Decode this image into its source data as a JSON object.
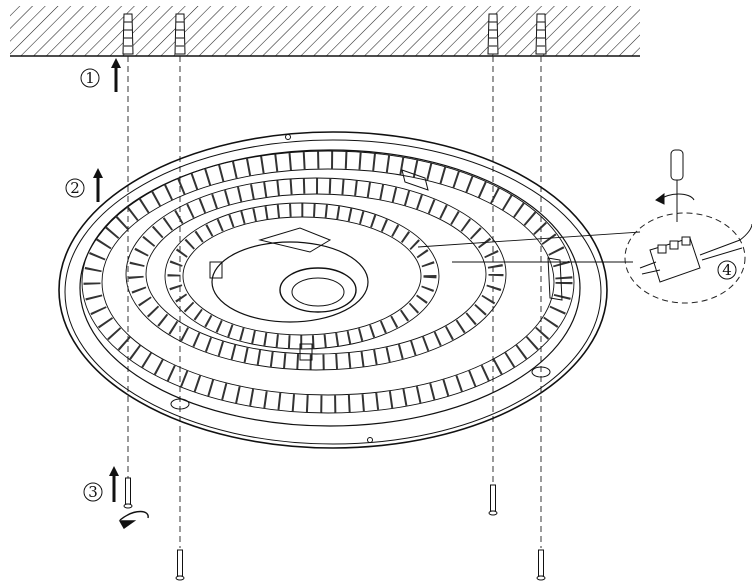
{
  "steps": [
    {
      "number": "1",
      "label": "①",
      "action": "drill-ceiling-and-insert-wall-plugs"
    },
    {
      "number": "2",
      "label": "②",
      "action": "lift-fixture-to-ceiling"
    },
    {
      "number": "3",
      "label": "③",
      "action": "fasten-screws"
    },
    {
      "number": "4",
      "label": "④",
      "action": "connect-wires-to-terminal-block"
    }
  ],
  "colors": {
    "line": "#111111",
    "background": "#ffffff"
  },
  "icons": [
    "wall-plug-icon",
    "screw-icon",
    "screwdriver-icon",
    "terminal-block-icon",
    "up-arrow-icon",
    "rotation-arrow-icon"
  ]
}
